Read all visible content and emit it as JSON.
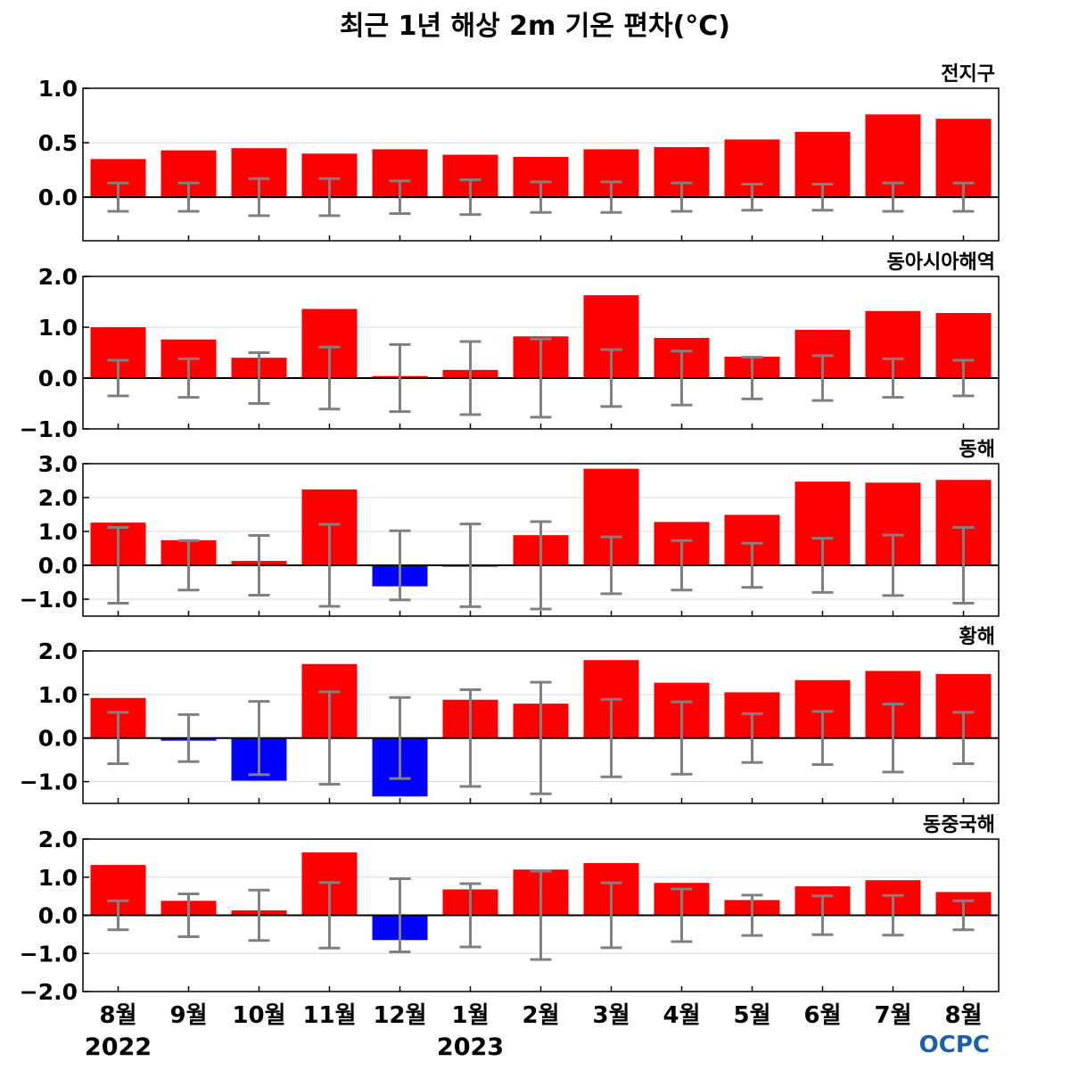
{
  "title": "최근 1년 해상 2m 기온 편차(°C)",
  "logo": "OCPC",
  "colors": {
    "positive": "#ff0000",
    "negative": "#0000ff",
    "errorbar": "#808080",
    "zero_line": "#000000",
    "grid": "#d9d9d9"
  },
  "chart_data": {
    "type": "bar",
    "months": [
      "8월",
      "9월",
      "10월",
      "11월",
      "12월",
      "1월",
      "2월",
      "3월",
      "4월",
      "5월",
      "6월",
      "7월",
      "8월"
    ],
    "years": [
      {
        "label": "2022",
        "month_index": 0
      },
      {
        "label": "2023",
        "month_index": 5
      }
    ],
    "panels": [
      {
        "name": "전지구",
        "ylim": [
          -0.4,
          1.0
        ],
        "yticks": [
          1.0,
          0.5,
          0.0
        ],
        "tick_labels": [
          "1.0",
          "0.5",
          "0.0"
        ],
        "values": [
          0.35,
          0.43,
          0.45,
          0.4,
          0.44,
          0.39,
          0.37,
          0.44,
          0.46,
          0.53,
          0.6,
          0.76,
          0.72
        ],
        "errors": [
          0.13,
          0.13,
          0.17,
          0.17,
          0.15,
          0.16,
          0.14,
          0.14,
          0.13,
          0.12,
          0.12,
          0.13,
          0.13
        ]
      },
      {
        "name": "동아시아해역",
        "ylim": [
          -1.0,
          2.0
        ],
        "yticks": [
          2.0,
          1.0,
          0.0,
          -1.0
        ],
        "tick_labels": [
          "2.0",
          "1.0",
          "0.0",
          "−1.0"
        ],
        "values": [
          1.0,
          0.76,
          0.4,
          1.36,
          0.04,
          0.16,
          0.82,
          1.63,
          0.79,
          0.42,
          0.95,
          1.32,
          1.28
        ],
        "errors": [
          0.35,
          0.38,
          0.5,
          0.61,
          0.66,
          0.72,
          0.77,
          0.56,
          0.53,
          0.41,
          0.44,
          0.38,
          0.35
        ]
      },
      {
        "name": "동해",
        "ylim": [
          -1.5,
          3.0
        ],
        "yticks": [
          3.0,
          2.0,
          1.0,
          0.0,
          -1.0
        ],
        "tick_labels": [
          "3.0",
          "2.0",
          "1.0",
          "0.0",
          "−1.0"
        ],
        "values": [
          1.26,
          0.74,
          0.13,
          2.24,
          -0.62,
          -0.04,
          0.89,
          2.85,
          1.28,
          1.49,
          2.47,
          2.44,
          2.52
        ],
        "errors": [
          1.12,
          0.73,
          0.88,
          1.21,
          1.02,
          1.22,
          1.29,
          0.84,
          0.73,
          0.65,
          0.8,
          0.89,
          1.12
        ]
      },
      {
        "name": "황해",
        "ylim": [
          -1.5,
          2.0
        ],
        "yticks": [
          2.0,
          1.0,
          0.0,
          -1.0
        ],
        "tick_labels": [
          "2.0",
          "1.0",
          "0.0",
          "−1.0"
        ],
        "values": [
          0.92,
          -0.06,
          -0.98,
          1.7,
          -1.34,
          0.88,
          0.79,
          1.79,
          1.27,
          1.05,
          1.33,
          1.54,
          1.47
        ],
        "errors": [
          0.59,
          0.54,
          0.84,
          1.06,
          0.93,
          1.11,
          1.28,
          0.89,
          0.83,
          0.56,
          0.61,
          0.78,
          0.59
        ]
      },
      {
        "name": "동중국해",
        "ylim": [
          -2.0,
          2.0
        ],
        "yticks": [
          2.0,
          1.0,
          0.0,
          -1.0,
          -2.0
        ],
        "tick_labels": [
          "2.0",
          "1.0",
          "0.0",
          "−1.0",
          "−2.0"
        ],
        "values": [
          1.32,
          0.38,
          0.13,
          1.65,
          -0.65,
          0.68,
          1.2,
          1.37,
          0.85,
          0.4,
          0.76,
          0.92,
          0.61
        ],
        "errors": [
          0.38,
          0.56,
          0.66,
          0.86,
          0.96,
          0.83,
          1.16,
          0.85,
          0.69,
          0.53,
          0.51,
          0.52,
          0.38
        ]
      }
    ]
  }
}
